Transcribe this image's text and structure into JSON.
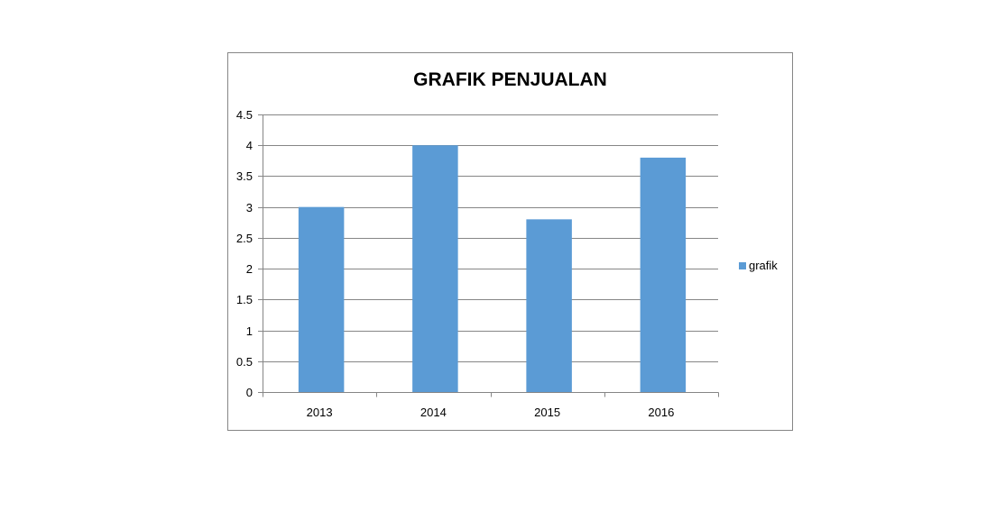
{
  "chart_data": {
    "type": "bar",
    "title": "GRAFIK PENJUALAN",
    "categories": [
      "2013",
      "2014",
      "2015",
      "2016"
    ],
    "series": [
      {
        "name": "grafik",
        "values": [
          3,
          4,
          2.8,
          3.8
        ],
        "color": "#5b9bd5"
      }
    ],
    "ylim": [
      0,
      4.5
    ],
    "yticks": [
      0,
      0.5,
      1,
      1.5,
      2,
      2.5,
      3,
      3.5,
      4,
      4.5
    ],
    "grid": true,
    "legend": {
      "position": "right"
    }
  },
  "colors": {
    "grid": "#868686",
    "axis": "#868686",
    "frame": "#868686"
  }
}
